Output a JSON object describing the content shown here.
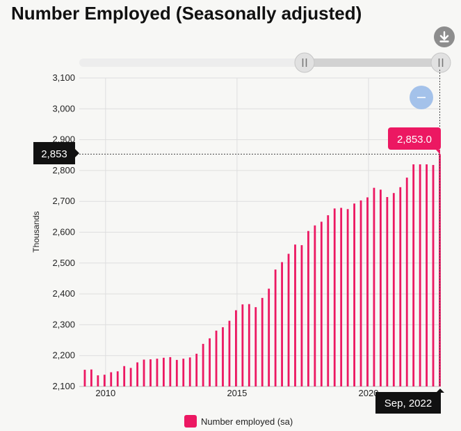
{
  "title": "Number Employed (Seasonally adjusted)",
  "icons": {
    "download": "download-icon",
    "zoom_out": "minus-icon"
  },
  "colors": {
    "series": "#ec1862",
    "tooltip_bg": "#ec1862",
    "label_bg": "#111111"
  },
  "tooltip": {
    "value": "2,853.0"
  },
  "crosshair": {
    "y_label": "2,853",
    "x_label": "Sep, 2022"
  },
  "legend": {
    "label": "Number employed (sa)"
  },
  "chart_data": {
    "type": "bar",
    "ylabel": "Thousands",
    "ylim": [
      2100,
      3100
    ],
    "xlim": [
      2009.0,
      2022.75
    ],
    "yticks": [
      {
        "value": 2100,
        "label": "2,100"
      },
      {
        "value": 2200,
        "label": "2,200"
      },
      {
        "value": 2300,
        "label": "2,300"
      },
      {
        "value": 2400,
        "label": "2,400"
      },
      {
        "value": 2500,
        "label": "2,500"
      },
      {
        "value": 2600,
        "label": "2,600"
      },
      {
        "value": 2700,
        "label": "2,700"
      },
      {
        "value": 2800,
        "label": "2,800"
      },
      {
        "value": 2900,
        "label": "2,900"
      },
      {
        "value": 3000,
        "label": "3,000"
      },
      {
        "value": 3100,
        "label": "3,100"
      }
    ],
    "xticks": [
      {
        "value": 2010,
        "label": "2010"
      },
      {
        "value": 2015,
        "label": "2015"
      },
      {
        "value": 2020,
        "label": "2020"
      }
    ],
    "series": [
      {
        "name": "Number employed (sa)",
        "x": [
          2009.21,
          2009.46,
          2009.71,
          2009.96,
          2010.21,
          2010.46,
          2010.71,
          2010.96,
          2011.21,
          2011.46,
          2011.71,
          2011.96,
          2012.21,
          2012.46,
          2012.71,
          2012.96,
          2013.21,
          2013.46,
          2013.71,
          2013.96,
          2014.21,
          2014.46,
          2014.71,
          2014.96,
          2015.21,
          2015.46,
          2015.71,
          2015.96,
          2016.21,
          2016.46,
          2016.71,
          2016.96,
          2017.21,
          2017.46,
          2017.71,
          2017.96,
          2018.21,
          2018.46,
          2018.71,
          2018.96,
          2019.21,
          2019.46,
          2019.71,
          2019.96,
          2020.21,
          2020.46,
          2020.71,
          2020.96,
          2021.21,
          2021.46,
          2021.71,
          2021.96,
          2022.21,
          2022.46,
          2022.71
        ],
        "values": [
          2154,
          2155,
          2136,
          2138,
          2146,
          2149,
          2166,
          2160,
          2178,
          2187,
          2188,
          2190,
          2193,
          2195,
          2186,
          2190,
          2194,
          2206,
          2238,
          2256,
          2281,
          2292,
          2313,
          2347,
          2366,
          2367,
          2357,
          2387,
          2417,
          2479,
          2503,
          2530,
          2560,
          2558,
          2604,
          2622,
          2634,
          2655,
          2677,
          2679,
          2675,
          2693,
          2703,
          2713,
          2744,
          2738,
          2714,
          2727,
          2746,
          2777,
          2820,
          2820,
          2820,
          2818,
          2853
        ]
      }
    ]
  }
}
